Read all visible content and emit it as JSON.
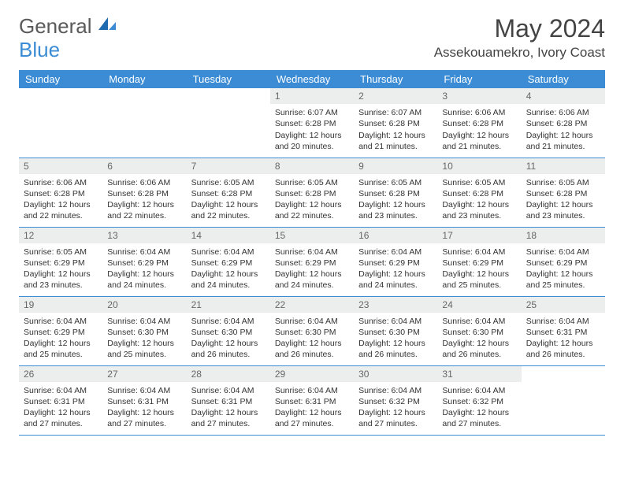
{
  "brand": {
    "general": "General",
    "blue": "Blue"
  },
  "title": "May 2024",
  "location": "Assekouamekro, Ivory Coast",
  "colors": {
    "header_bg": "#3b8cd4",
    "header_fg": "#ffffff",
    "daynum_bg": "#eceeee",
    "daynum_fg": "#666666",
    "row_border": "#3b8cd4",
    "text": "#333333",
    "logo_gray": "#5a5a5a",
    "logo_blue": "#3b8cd4"
  },
  "weekdays": [
    "Sunday",
    "Monday",
    "Tuesday",
    "Wednesday",
    "Thursday",
    "Friday",
    "Saturday"
  ],
  "weeks": [
    [
      null,
      null,
      null,
      {
        "n": "1",
        "sr": "6:07 AM",
        "ss": "6:28 PM",
        "dl": "12 hours and 20 minutes."
      },
      {
        "n": "2",
        "sr": "6:07 AM",
        "ss": "6:28 PM",
        "dl": "12 hours and 21 minutes."
      },
      {
        "n": "3",
        "sr": "6:06 AM",
        "ss": "6:28 PM",
        "dl": "12 hours and 21 minutes."
      },
      {
        "n": "4",
        "sr": "6:06 AM",
        "ss": "6:28 PM",
        "dl": "12 hours and 21 minutes."
      }
    ],
    [
      {
        "n": "5",
        "sr": "6:06 AM",
        "ss": "6:28 PM",
        "dl": "12 hours and 22 minutes."
      },
      {
        "n": "6",
        "sr": "6:06 AM",
        "ss": "6:28 PM",
        "dl": "12 hours and 22 minutes."
      },
      {
        "n": "7",
        "sr": "6:05 AM",
        "ss": "6:28 PM",
        "dl": "12 hours and 22 minutes."
      },
      {
        "n": "8",
        "sr": "6:05 AM",
        "ss": "6:28 PM",
        "dl": "12 hours and 22 minutes."
      },
      {
        "n": "9",
        "sr": "6:05 AM",
        "ss": "6:28 PM",
        "dl": "12 hours and 23 minutes."
      },
      {
        "n": "10",
        "sr": "6:05 AM",
        "ss": "6:28 PM",
        "dl": "12 hours and 23 minutes."
      },
      {
        "n": "11",
        "sr": "6:05 AM",
        "ss": "6:28 PM",
        "dl": "12 hours and 23 minutes."
      }
    ],
    [
      {
        "n": "12",
        "sr": "6:05 AM",
        "ss": "6:29 PM",
        "dl": "12 hours and 23 minutes."
      },
      {
        "n": "13",
        "sr": "6:04 AM",
        "ss": "6:29 PM",
        "dl": "12 hours and 24 minutes."
      },
      {
        "n": "14",
        "sr": "6:04 AM",
        "ss": "6:29 PM",
        "dl": "12 hours and 24 minutes."
      },
      {
        "n": "15",
        "sr": "6:04 AM",
        "ss": "6:29 PM",
        "dl": "12 hours and 24 minutes."
      },
      {
        "n": "16",
        "sr": "6:04 AM",
        "ss": "6:29 PM",
        "dl": "12 hours and 24 minutes."
      },
      {
        "n": "17",
        "sr": "6:04 AM",
        "ss": "6:29 PM",
        "dl": "12 hours and 25 minutes."
      },
      {
        "n": "18",
        "sr": "6:04 AM",
        "ss": "6:29 PM",
        "dl": "12 hours and 25 minutes."
      }
    ],
    [
      {
        "n": "19",
        "sr": "6:04 AM",
        "ss": "6:29 PM",
        "dl": "12 hours and 25 minutes."
      },
      {
        "n": "20",
        "sr": "6:04 AM",
        "ss": "6:30 PM",
        "dl": "12 hours and 25 minutes."
      },
      {
        "n": "21",
        "sr": "6:04 AM",
        "ss": "6:30 PM",
        "dl": "12 hours and 26 minutes."
      },
      {
        "n": "22",
        "sr": "6:04 AM",
        "ss": "6:30 PM",
        "dl": "12 hours and 26 minutes."
      },
      {
        "n": "23",
        "sr": "6:04 AM",
        "ss": "6:30 PM",
        "dl": "12 hours and 26 minutes."
      },
      {
        "n": "24",
        "sr": "6:04 AM",
        "ss": "6:30 PM",
        "dl": "12 hours and 26 minutes."
      },
      {
        "n": "25",
        "sr": "6:04 AM",
        "ss": "6:31 PM",
        "dl": "12 hours and 26 minutes."
      }
    ],
    [
      {
        "n": "26",
        "sr": "6:04 AM",
        "ss": "6:31 PM",
        "dl": "12 hours and 27 minutes."
      },
      {
        "n": "27",
        "sr": "6:04 AM",
        "ss": "6:31 PM",
        "dl": "12 hours and 27 minutes."
      },
      {
        "n": "28",
        "sr": "6:04 AM",
        "ss": "6:31 PM",
        "dl": "12 hours and 27 minutes."
      },
      {
        "n": "29",
        "sr": "6:04 AM",
        "ss": "6:31 PM",
        "dl": "12 hours and 27 minutes."
      },
      {
        "n": "30",
        "sr": "6:04 AM",
        "ss": "6:32 PM",
        "dl": "12 hours and 27 minutes."
      },
      {
        "n": "31",
        "sr": "6:04 AM",
        "ss": "6:32 PM",
        "dl": "12 hours and 27 minutes."
      },
      null
    ]
  ],
  "labels": {
    "sunrise": "Sunrise: ",
    "sunset": "Sunset: ",
    "daylight": "Daylight: "
  }
}
